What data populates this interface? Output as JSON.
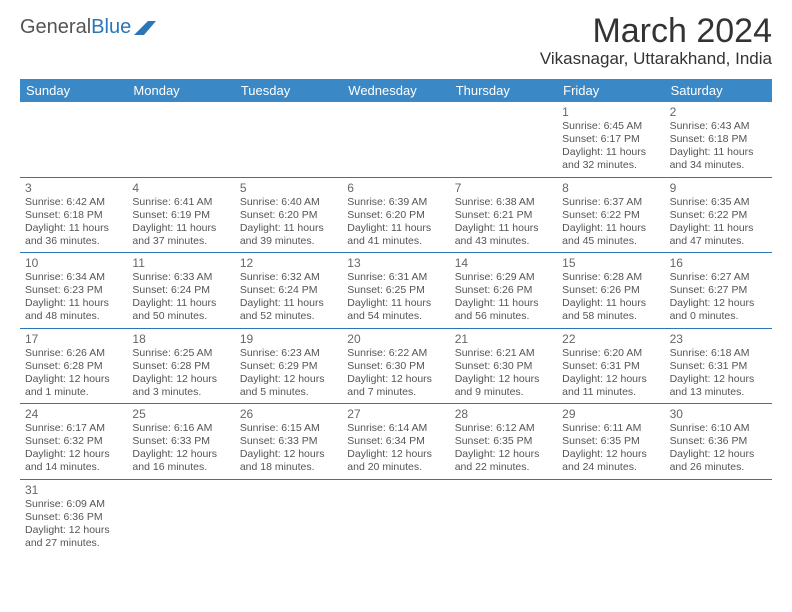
{
  "logo": {
    "text1": "General",
    "text2": "Blue"
  },
  "title": "March 2024",
  "location": "Vikasnagar, Uttarakhand, India",
  "colors": {
    "header_bg": "#3b88c6",
    "header_fg": "#ffffff",
    "border": "#2a76b9",
    "title_fg": "#333333",
    "daynum_fg": "#666666",
    "info_fg": "#555555",
    "logo_general": "#555555",
    "logo_blue": "#2a76b9"
  },
  "day_labels": [
    "Sunday",
    "Monday",
    "Tuesday",
    "Wednesday",
    "Thursday",
    "Friday",
    "Saturday"
  ],
  "weeks": [
    [
      {},
      {},
      {},
      {},
      {},
      {
        "n": "1",
        "sr": "Sunrise: 6:45 AM",
        "ss": "Sunset: 6:17 PM",
        "d1": "Daylight: 11 hours",
        "d2": "and 32 minutes."
      },
      {
        "n": "2",
        "sr": "Sunrise: 6:43 AM",
        "ss": "Sunset: 6:18 PM",
        "d1": "Daylight: 11 hours",
        "d2": "and 34 minutes."
      }
    ],
    [
      {
        "n": "3",
        "sr": "Sunrise: 6:42 AM",
        "ss": "Sunset: 6:18 PM",
        "d1": "Daylight: 11 hours",
        "d2": "and 36 minutes."
      },
      {
        "n": "4",
        "sr": "Sunrise: 6:41 AM",
        "ss": "Sunset: 6:19 PM",
        "d1": "Daylight: 11 hours",
        "d2": "and 37 minutes."
      },
      {
        "n": "5",
        "sr": "Sunrise: 6:40 AM",
        "ss": "Sunset: 6:20 PM",
        "d1": "Daylight: 11 hours",
        "d2": "and 39 minutes."
      },
      {
        "n": "6",
        "sr": "Sunrise: 6:39 AM",
        "ss": "Sunset: 6:20 PM",
        "d1": "Daylight: 11 hours",
        "d2": "and 41 minutes."
      },
      {
        "n": "7",
        "sr": "Sunrise: 6:38 AM",
        "ss": "Sunset: 6:21 PM",
        "d1": "Daylight: 11 hours",
        "d2": "and 43 minutes."
      },
      {
        "n": "8",
        "sr": "Sunrise: 6:37 AM",
        "ss": "Sunset: 6:22 PM",
        "d1": "Daylight: 11 hours",
        "d2": "and 45 minutes."
      },
      {
        "n": "9",
        "sr": "Sunrise: 6:35 AM",
        "ss": "Sunset: 6:22 PM",
        "d1": "Daylight: 11 hours",
        "d2": "and 47 minutes."
      }
    ],
    [
      {
        "n": "10",
        "sr": "Sunrise: 6:34 AM",
        "ss": "Sunset: 6:23 PM",
        "d1": "Daylight: 11 hours",
        "d2": "and 48 minutes."
      },
      {
        "n": "11",
        "sr": "Sunrise: 6:33 AM",
        "ss": "Sunset: 6:24 PM",
        "d1": "Daylight: 11 hours",
        "d2": "and 50 minutes."
      },
      {
        "n": "12",
        "sr": "Sunrise: 6:32 AM",
        "ss": "Sunset: 6:24 PM",
        "d1": "Daylight: 11 hours",
        "d2": "and 52 minutes."
      },
      {
        "n": "13",
        "sr": "Sunrise: 6:31 AM",
        "ss": "Sunset: 6:25 PM",
        "d1": "Daylight: 11 hours",
        "d2": "and 54 minutes."
      },
      {
        "n": "14",
        "sr": "Sunrise: 6:29 AM",
        "ss": "Sunset: 6:26 PM",
        "d1": "Daylight: 11 hours",
        "d2": "and 56 minutes."
      },
      {
        "n": "15",
        "sr": "Sunrise: 6:28 AM",
        "ss": "Sunset: 6:26 PM",
        "d1": "Daylight: 11 hours",
        "d2": "and 58 minutes."
      },
      {
        "n": "16",
        "sr": "Sunrise: 6:27 AM",
        "ss": "Sunset: 6:27 PM",
        "d1": "Daylight: 12 hours",
        "d2": "and 0 minutes."
      }
    ],
    [
      {
        "n": "17",
        "sr": "Sunrise: 6:26 AM",
        "ss": "Sunset: 6:28 PM",
        "d1": "Daylight: 12 hours",
        "d2": "and 1 minute."
      },
      {
        "n": "18",
        "sr": "Sunrise: 6:25 AM",
        "ss": "Sunset: 6:28 PM",
        "d1": "Daylight: 12 hours",
        "d2": "and 3 minutes."
      },
      {
        "n": "19",
        "sr": "Sunrise: 6:23 AM",
        "ss": "Sunset: 6:29 PM",
        "d1": "Daylight: 12 hours",
        "d2": "and 5 minutes."
      },
      {
        "n": "20",
        "sr": "Sunrise: 6:22 AM",
        "ss": "Sunset: 6:30 PM",
        "d1": "Daylight: 12 hours",
        "d2": "and 7 minutes."
      },
      {
        "n": "21",
        "sr": "Sunrise: 6:21 AM",
        "ss": "Sunset: 6:30 PM",
        "d1": "Daylight: 12 hours",
        "d2": "and 9 minutes."
      },
      {
        "n": "22",
        "sr": "Sunrise: 6:20 AM",
        "ss": "Sunset: 6:31 PM",
        "d1": "Daylight: 12 hours",
        "d2": "and 11 minutes."
      },
      {
        "n": "23",
        "sr": "Sunrise: 6:18 AM",
        "ss": "Sunset: 6:31 PM",
        "d1": "Daylight: 12 hours",
        "d2": "and 13 minutes."
      }
    ],
    [
      {
        "n": "24",
        "sr": "Sunrise: 6:17 AM",
        "ss": "Sunset: 6:32 PM",
        "d1": "Daylight: 12 hours",
        "d2": "and 14 minutes."
      },
      {
        "n": "25",
        "sr": "Sunrise: 6:16 AM",
        "ss": "Sunset: 6:33 PM",
        "d1": "Daylight: 12 hours",
        "d2": "and 16 minutes."
      },
      {
        "n": "26",
        "sr": "Sunrise: 6:15 AM",
        "ss": "Sunset: 6:33 PM",
        "d1": "Daylight: 12 hours",
        "d2": "and 18 minutes."
      },
      {
        "n": "27",
        "sr": "Sunrise: 6:14 AM",
        "ss": "Sunset: 6:34 PM",
        "d1": "Daylight: 12 hours",
        "d2": "and 20 minutes."
      },
      {
        "n": "28",
        "sr": "Sunrise: 6:12 AM",
        "ss": "Sunset: 6:35 PM",
        "d1": "Daylight: 12 hours",
        "d2": "and 22 minutes."
      },
      {
        "n": "29",
        "sr": "Sunrise: 6:11 AM",
        "ss": "Sunset: 6:35 PM",
        "d1": "Daylight: 12 hours",
        "d2": "and 24 minutes."
      },
      {
        "n": "30",
        "sr": "Sunrise: 6:10 AM",
        "ss": "Sunset: 6:36 PM",
        "d1": "Daylight: 12 hours",
        "d2": "and 26 minutes."
      }
    ],
    [
      {
        "n": "31",
        "sr": "Sunrise: 6:09 AM",
        "ss": "Sunset: 6:36 PM",
        "d1": "Daylight: 12 hours",
        "d2": "and 27 minutes."
      },
      {},
      {},
      {},
      {},
      {},
      {}
    ]
  ]
}
